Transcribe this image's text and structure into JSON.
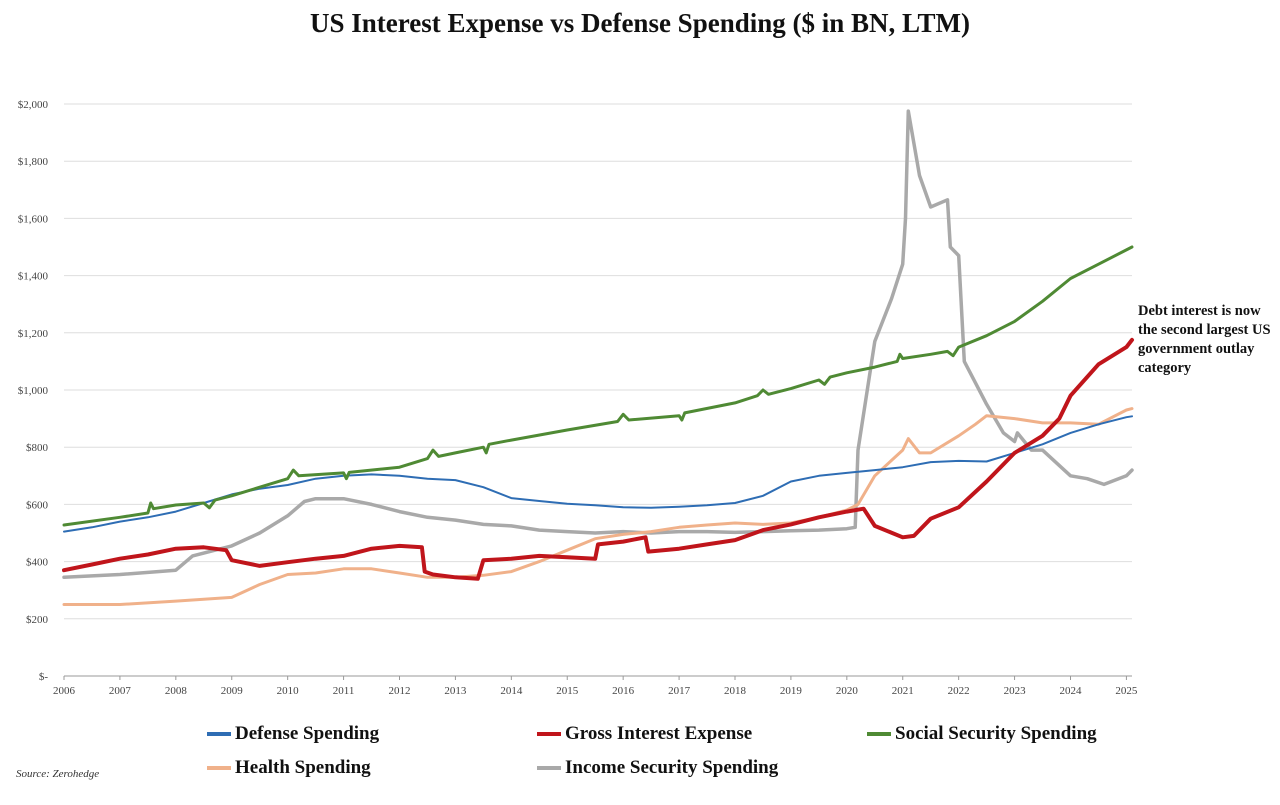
{
  "chart_data": {
    "type": "line",
    "title": "US Interest Expense vs Defense Spending ($ in BN, LTM)",
    "ylim": [
      0,
      2000
    ],
    "xlim": [
      2006,
      2025.1
    ],
    "ytick_labels": [
      "$-",
      "$200",
      "$400",
      "$600",
      "$800",
      "$1,000",
      "$1,200",
      "$1,400",
      "$1,600",
      "$1,800",
      "$2,000"
    ],
    "ytick_values": [
      0,
      200,
      400,
      600,
      800,
      1000,
      1200,
      1400,
      1600,
      1800,
      2000
    ],
    "xtick_labels": [
      "2006",
      "2007",
      "2008",
      "2009",
      "2010",
      "2011",
      "2012",
      "2013",
      "2014",
      "2015",
      "2016",
      "2017",
      "2018",
      "2019",
      "2020",
      "2021",
      "2022",
      "2023",
      "2024",
      "2025"
    ],
    "xtick_values": [
      2006,
      2007,
      2008,
      2009,
      2010,
      2011,
      2012,
      2013,
      2014,
      2015,
      2016,
      2017,
      2018,
      2019,
      2020,
      2021,
      2022,
      2023,
      2024,
      2025
    ],
    "grid": "horizontal",
    "legend_position": "bottom",
    "annotation": "Debt interest is now the second largest US government outlay category",
    "source": "Source: Zerohedge",
    "series": [
      {
        "name": "Defense Spending",
        "color": "#2e6db4",
        "width": 2,
        "points": [
          [
            2006,
            505
          ],
          [
            2006.5,
            520
          ],
          [
            2007,
            540
          ],
          [
            2007.5,
            555
          ],
          [
            2008,
            575
          ],
          [
            2008.5,
            605
          ],
          [
            2009,
            635
          ],
          [
            2009.5,
            655
          ],
          [
            2010,
            668
          ],
          [
            2010.5,
            690
          ],
          [
            2011,
            700
          ],
          [
            2011.5,
            705
          ],
          [
            2012,
            700
          ],
          [
            2012.5,
            690
          ],
          [
            2013,
            685
          ],
          [
            2013.5,
            660
          ],
          [
            2014,
            622
          ],
          [
            2014.5,
            612
          ],
          [
            2015,
            602
          ],
          [
            2015.5,
            597
          ],
          [
            2016,
            590
          ],
          [
            2016.5,
            588
          ],
          [
            2017,
            592
          ],
          [
            2017.5,
            597
          ],
          [
            2018,
            605
          ],
          [
            2018.5,
            630
          ],
          [
            2019,
            680
          ],
          [
            2019.5,
            700
          ],
          [
            2020,
            710
          ],
          [
            2020.5,
            720
          ],
          [
            2021,
            730
          ],
          [
            2021.5,
            748
          ],
          [
            2022,
            752
          ],
          [
            2022.5,
            750
          ],
          [
            2023,
            780
          ],
          [
            2023.5,
            810
          ],
          [
            2024,
            850
          ],
          [
            2024.5,
            880
          ],
          [
            2025,
            905
          ],
          [
            2025.1,
            908
          ]
        ]
      },
      {
        "name": "Gross Interest Expense",
        "color": "#c0151b",
        "width": 4,
        "points": [
          [
            2006,
            370
          ],
          [
            2006.5,
            390
          ],
          [
            2007,
            410
          ],
          [
            2007.5,
            425
          ],
          [
            2008,
            445
          ],
          [
            2008.5,
            450
          ],
          [
            2008.9,
            440
          ],
          [
            2009,
            405
          ],
          [
            2009.5,
            385
          ],
          [
            2010,
            398
          ],
          [
            2010.5,
            410
          ],
          [
            2011,
            420
          ],
          [
            2011.5,
            445
          ],
          [
            2012,
            455
          ],
          [
            2012.4,
            450
          ],
          [
            2012.45,
            365
          ],
          [
            2012.6,
            355
          ],
          [
            2013,
            345
          ],
          [
            2013.4,
            340
          ],
          [
            2013.5,
            405
          ],
          [
            2014,
            410
          ],
          [
            2014.5,
            420
          ],
          [
            2015,
            415
          ],
          [
            2015.5,
            410
          ],
          [
            2015.55,
            460
          ],
          [
            2016,
            470
          ],
          [
            2016.4,
            485
          ],
          [
            2016.45,
            435
          ],
          [
            2017,
            445
          ],
          [
            2017.5,
            460
          ],
          [
            2018,
            475
          ],
          [
            2018.5,
            510
          ],
          [
            2019,
            530
          ],
          [
            2019.5,
            555
          ],
          [
            2020,
            575
          ],
          [
            2020.3,
            585
          ],
          [
            2020.5,
            525
          ],
          [
            2021,
            485
          ],
          [
            2021.2,
            490
          ],
          [
            2021.5,
            550
          ],
          [
            2022,
            590
          ],
          [
            2022.5,
            680
          ],
          [
            2023,
            780
          ],
          [
            2023.5,
            840
          ],
          [
            2023.8,
            900
          ],
          [
            2024,
            980
          ],
          [
            2024.5,
            1090
          ],
          [
            2025,
            1150
          ],
          [
            2025.1,
            1175
          ]
        ]
      },
      {
        "name": "Social Security Spending",
        "color": "#4f8a34",
        "width": 3,
        "points": [
          [
            2006,
            528
          ],
          [
            2007,
            555
          ],
          [
            2007.5,
            570
          ],
          [
            2007.55,
            605
          ],
          [
            2007.6,
            585
          ],
          [
            2008,
            598
          ],
          [
            2008.5,
            605
          ],
          [
            2008.6,
            588
          ],
          [
            2008.7,
            615
          ],
          [
            2009,
            630
          ],
          [
            2009.5,
            660
          ],
          [
            2010,
            690
          ],
          [
            2010.1,
            720
          ],
          [
            2010.2,
            700
          ],
          [
            2011,
            710
          ],
          [
            2011.05,
            690
          ],
          [
            2011.1,
            712
          ],
          [
            2012,
            730
          ],
          [
            2012.5,
            760
          ],
          [
            2012.6,
            790
          ],
          [
            2012.7,
            768
          ],
          [
            2013,
            780
          ],
          [
            2013.5,
            800
          ],
          [
            2013.55,
            780
          ],
          [
            2013.6,
            810
          ],
          [
            2014,
            825
          ],
          [
            2015,
            860
          ],
          [
            2015.9,
            890
          ],
          [
            2016,
            915
          ],
          [
            2016.1,
            895
          ],
          [
            2017,
            910
          ],
          [
            2017.05,
            895
          ],
          [
            2017.1,
            920
          ],
          [
            2018,
            955
          ],
          [
            2018.4,
            980
          ],
          [
            2018.5,
            1000
          ],
          [
            2018.6,
            985
          ],
          [
            2019,
            1005
          ],
          [
            2019.5,
            1035
          ],
          [
            2019.6,
            1020
          ],
          [
            2019.7,
            1045
          ],
          [
            2020,
            1060
          ],
          [
            2020.5,
            1080
          ],
          [
            2020.9,
            1100
          ],
          [
            2020.95,
            1125
          ],
          [
            2021,
            1110
          ],
          [
            2021.5,
            1125
          ],
          [
            2021.8,
            1135
          ],
          [
            2021.9,
            1120
          ],
          [
            2022,
            1150
          ],
          [
            2022.5,
            1190
          ],
          [
            2023,
            1240
          ],
          [
            2023.5,
            1310
          ],
          [
            2024,
            1390
          ],
          [
            2024.5,
            1440
          ],
          [
            2025.1,
            1500
          ]
        ]
      },
      {
        "name": "Health Spending",
        "color": "#f0b18a",
        "width": 3,
        "points": [
          [
            2006,
            250
          ],
          [
            2007,
            250
          ],
          [
            2008,
            262
          ],
          [
            2009,
            275
          ],
          [
            2009.5,
            320
          ],
          [
            2010,
            355
          ],
          [
            2010.5,
            360
          ],
          [
            2011,
            375
          ],
          [
            2011.5,
            375
          ],
          [
            2012,
            360
          ],
          [
            2012.5,
            345
          ],
          [
            2013,
            345
          ],
          [
            2013.5,
            352
          ],
          [
            2014,
            365
          ],
          [
            2014.5,
            400
          ],
          [
            2015,
            440
          ],
          [
            2015.5,
            480
          ],
          [
            2016,
            495
          ],
          [
            2016.5,
            505
          ],
          [
            2017,
            520
          ],
          [
            2017.5,
            528
          ],
          [
            2018,
            535
          ],
          [
            2018.5,
            530
          ],
          [
            2019,
            535
          ],
          [
            2019.5,
            555
          ],
          [
            2020,
            580
          ],
          [
            2020.2,
            600
          ],
          [
            2020.5,
            700
          ],
          [
            2021,
            790
          ],
          [
            2021.1,
            830
          ],
          [
            2021.3,
            780
          ],
          [
            2021.5,
            780
          ],
          [
            2022,
            840
          ],
          [
            2022.3,
            880
          ],
          [
            2022.5,
            910
          ],
          [
            2023,
            900
          ],
          [
            2023.5,
            885
          ],
          [
            2024,
            885
          ],
          [
            2024.5,
            880
          ],
          [
            2025,
            930
          ],
          [
            2025.1,
            935
          ]
        ]
      },
      {
        "name": "Income Security Spending",
        "color": "#a9a9a9",
        "width": 3.5,
        "points": [
          [
            2006,
            345
          ],
          [
            2007,
            355
          ],
          [
            2008,
            370
          ],
          [
            2008.3,
            420
          ],
          [
            2008.7,
            440
          ],
          [
            2009,
            455
          ],
          [
            2009.5,
            500
          ],
          [
            2010,
            560
          ],
          [
            2010.3,
            610
          ],
          [
            2010.5,
            620
          ],
          [
            2011,
            620
          ],
          [
            2011.5,
            600
          ],
          [
            2012,
            575
          ],
          [
            2012.5,
            555
          ],
          [
            2013,
            545
          ],
          [
            2013.5,
            530
          ],
          [
            2014,
            525
          ],
          [
            2014.5,
            510
          ],
          [
            2015,
            505
          ],
          [
            2015.5,
            500
          ],
          [
            2016,
            505
          ],
          [
            2016.5,
            500
          ],
          [
            2017,
            505
          ],
          [
            2017.5,
            505
          ],
          [
            2018,
            502
          ],
          [
            2018.5,
            505
          ],
          [
            2019,
            508
          ],
          [
            2019.5,
            510
          ],
          [
            2020,
            515
          ],
          [
            2020.15,
            520
          ],
          [
            2020.2,
            790
          ],
          [
            2020.5,
            1170
          ],
          [
            2020.8,
            1320
          ],
          [
            2021,
            1440
          ],
          [
            2021.05,
            1600
          ],
          [
            2021.1,
            1975
          ],
          [
            2021.3,
            1750
          ],
          [
            2021.5,
            1640
          ],
          [
            2021.8,
            1665
          ],
          [
            2021.85,
            1500
          ],
          [
            2022,
            1470
          ],
          [
            2022.1,
            1100
          ],
          [
            2022.5,
            950
          ],
          [
            2022.8,
            850
          ],
          [
            2023,
            820
          ],
          [
            2023.05,
            850
          ],
          [
            2023.3,
            790
          ],
          [
            2023.5,
            790
          ],
          [
            2024,
            700
          ],
          [
            2024.3,
            690
          ],
          [
            2024.6,
            670
          ],
          [
            2025,
            700
          ],
          [
            2025.1,
            720
          ]
        ]
      }
    ]
  }
}
